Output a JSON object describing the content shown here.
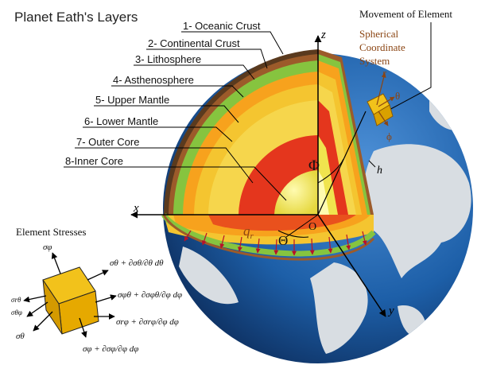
{
  "title": "Planet Eath's Layers",
  "layers": [
    {
      "label": "1- Oceanic Crust",
      "color": "#5a3a1e"
    },
    {
      "label": "2- Continental Crust",
      "color": "#9c5b2a"
    },
    {
      "label": "3- Lithosphere",
      "color": "#86c43f"
    },
    {
      "label": "4- Asthenosphere",
      "color": "#f7a21d"
    },
    {
      "label": "5- Upper Mantle",
      "color": "#f4c530"
    },
    {
      "label": "6- Lower Mantle",
      "color": "#f6d64c"
    },
    {
      "label": "7- Outer Core",
      "color": "#e4361d"
    },
    {
      "label": "8-Inner Core",
      "color": "#f0e44e"
    }
  ],
  "movement": {
    "title": "Movement of Element",
    "system_line1": "Spherical",
    "system_line2": "Coordinate",
    "system_line3": "System",
    "r": "r",
    "theta": "θ",
    "phi": "ϕ"
  },
  "axes": {
    "x": "x",
    "y": "y",
    "z": "z",
    "origin": "O"
  },
  "symbols": {
    "Phi": "Φ",
    "Theta": "Θ",
    "h": "h",
    "q": "q",
    "r_sub": "r"
  },
  "stresses": {
    "title": "Element Stresses",
    "sigma_phi": "σφ",
    "sigma_theta_plus": "σθ + ∂σθ/∂θ dθ",
    "sigma_phitheta_plus": "σφθ + ∂σφθ/∂φ dφ",
    "sigma_rtheta": "σrθ",
    "sigma_thetaphi": "σθφ",
    "sigma_rphi_plus": "σrφ + ∂σrφ/∂φ dφ",
    "sigma_theta": "σθ",
    "sigma_phi_plus": "σφ + ∂σφ/∂φ dφ"
  },
  "colors": {
    "ocean": "#1d5fa8",
    "land": "#d8dde2",
    "leader": "#000000",
    "pressure": "#b8102a"
  }
}
